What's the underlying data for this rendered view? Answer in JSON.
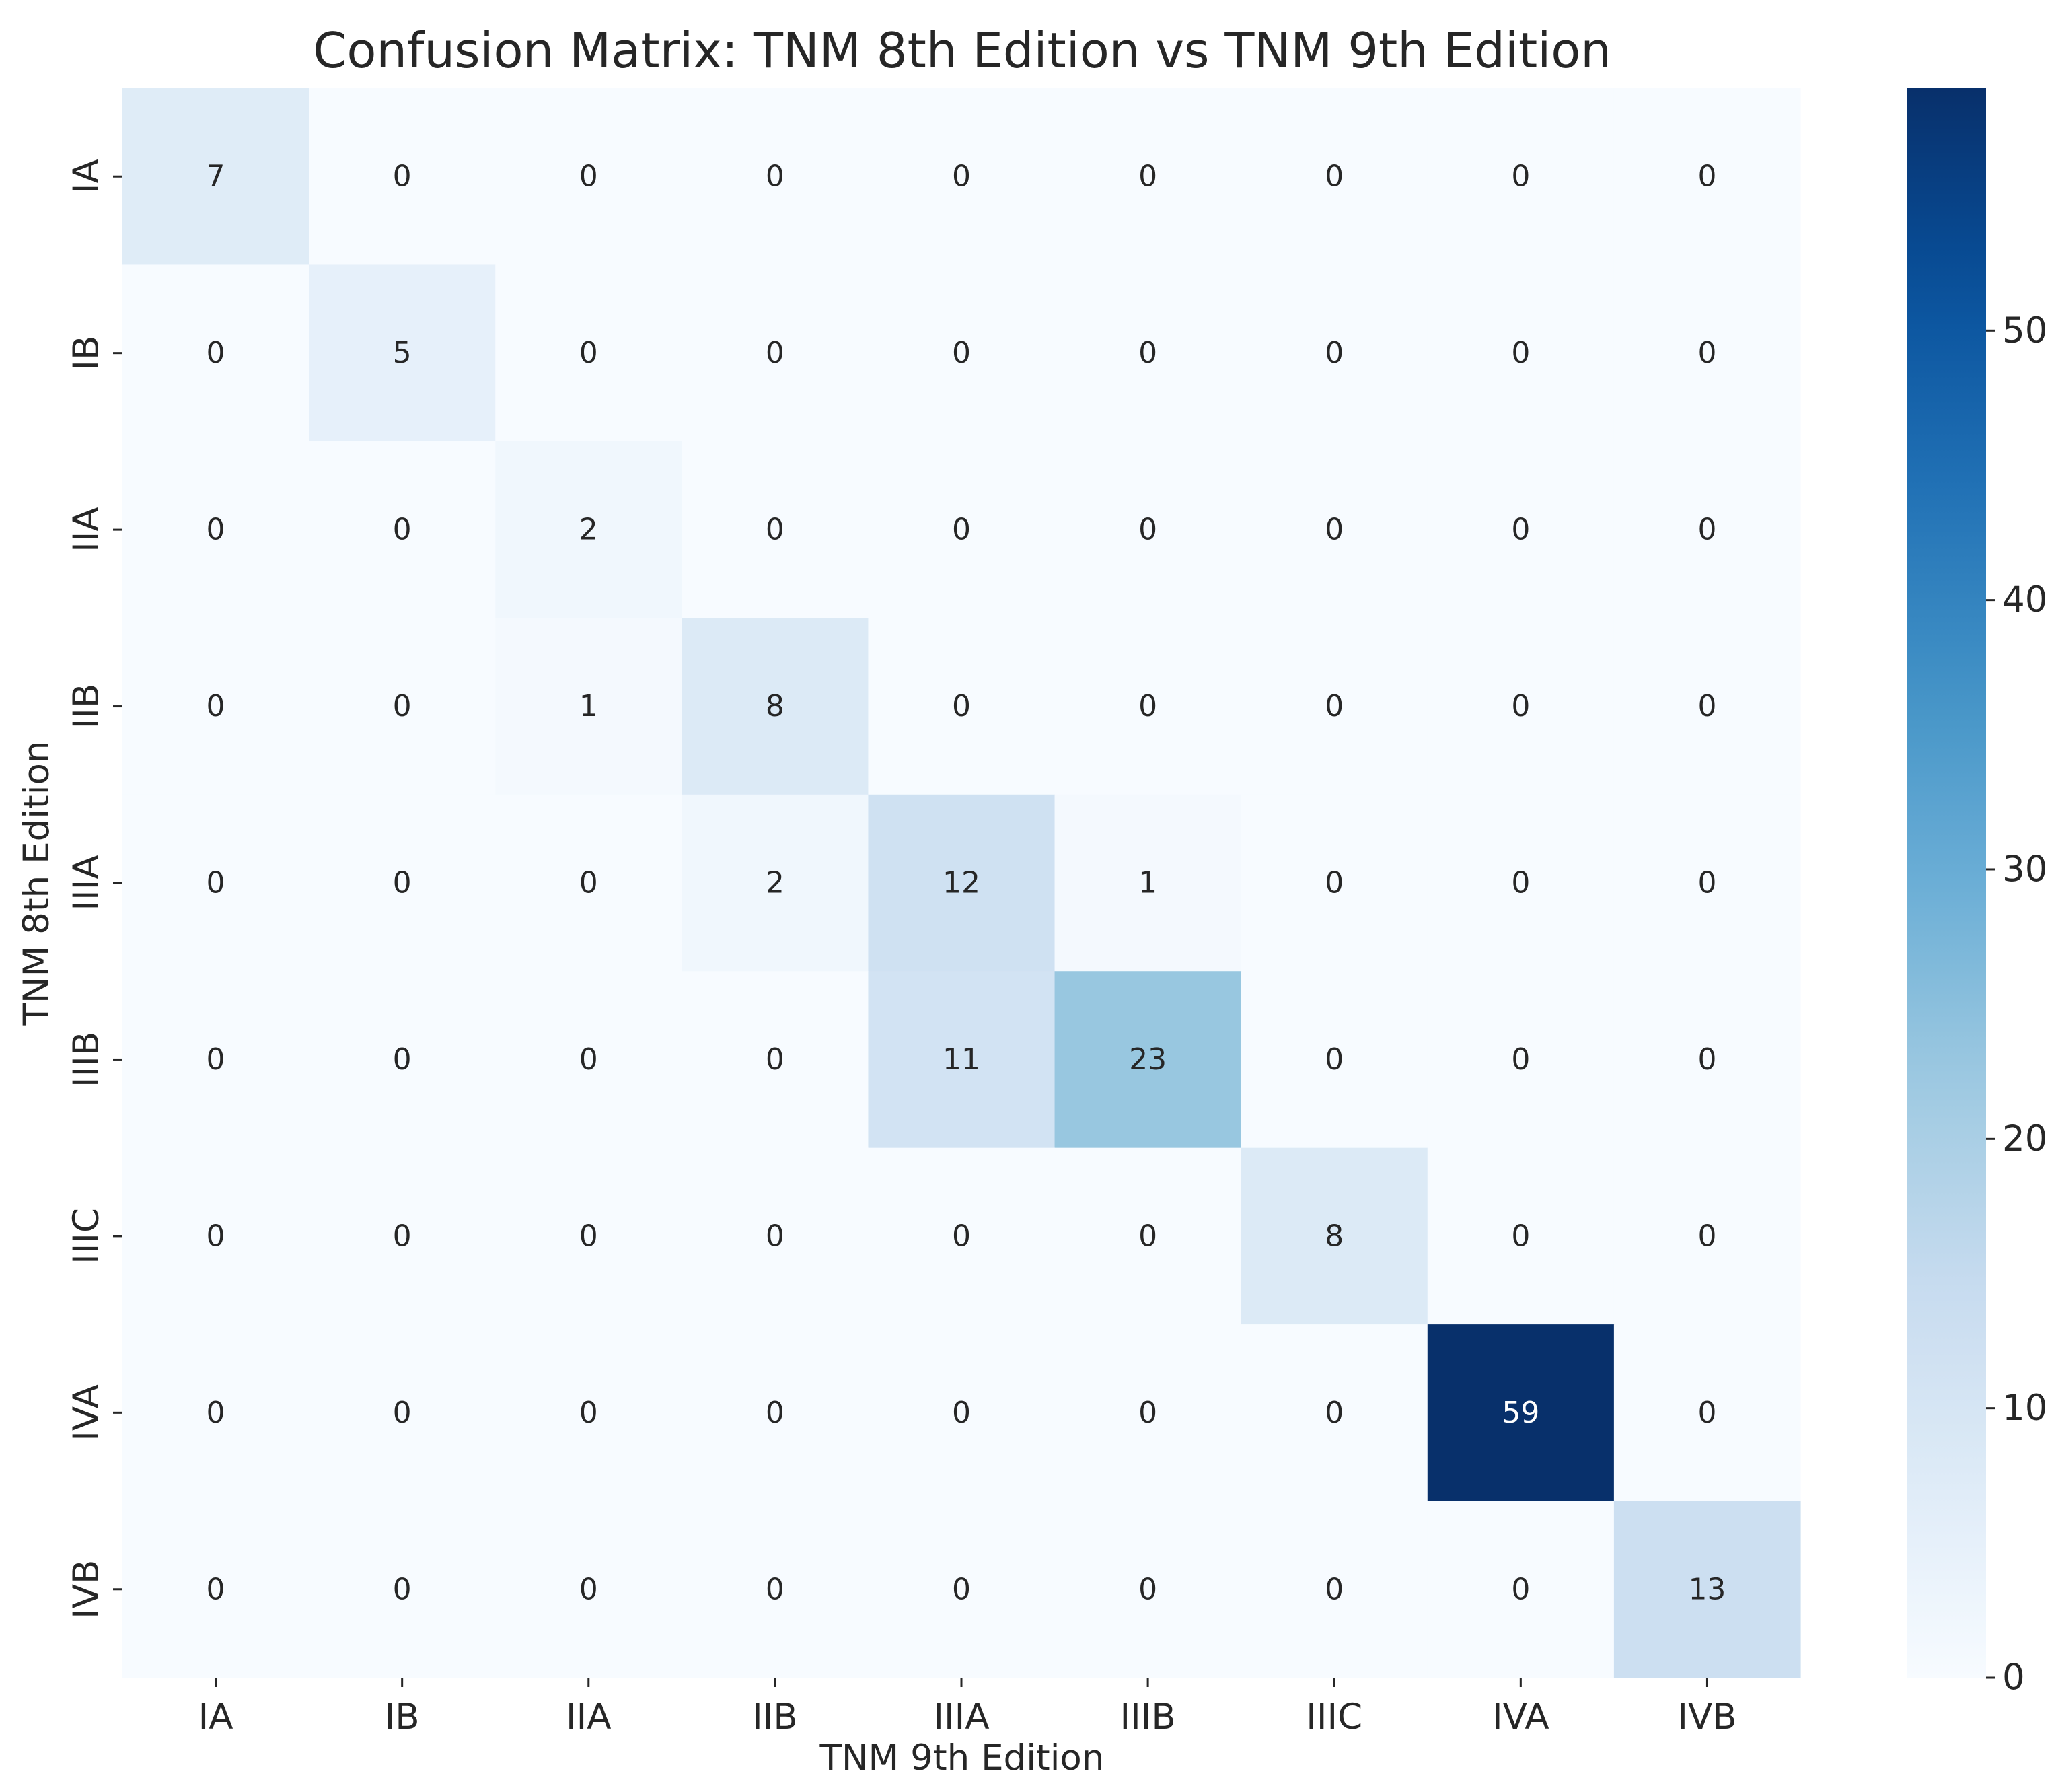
{
  "chart_data": {
    "type": "heatmap",
    "title": "Confusion Matrix: TNM 8th Edition vs TNM 9th Edition",
    "xlabel": "TNM 9th Edition",
    "ylabel": "TNM 8th Edition",
    "x_categories": [
      "IA",
      "IB",
      "IIA",
      "IIB",
      "IIIA",
      "IIIB",
      "IIIC",
      "IVA",
      "IVB"
    ],
    "y_categories": [
      "IA",
      "IB",
      "IIA",
      "IIB",
      "IIIA",
      "IIIB",
      "IIIC",
      "IVA",
      "IVB"
    ],
    "values": [
      [
        7,
        0,
        0,
        0,
        0,
        0,
        0,
        0,
        0
      ],
      [
        0,
        5,
        0,
        0,
        0,
        0,
        0,
        0,
        0
      ],
      [
        0,
        0,
        2,
        0,
        0,
        0,
        0,
        0,
        0
      ],
      [
        0,
        0,
        1,
        8,
        0,
        0,
        0,
        0,
        0
      ],
      [
        0,
        0,
        0,
        2,
        12,
        1,
        0,
        0,
        0
      ],
      [
        0,
        0,
        0,
        0,
        11,
        23,
        0,
        0,
        0
      ],
      [
        0,
        0,
        0,
        0,
        0,
        0,
        8,
        0,
        0
      ],
      [
        0,
        0,
        0,
        0,
        0,
        0,
        0,
        59,
        0
      ],
      [
        0,
        0,
        0,
        0,
        0,
        0,
        0,
        0,
        13
      ]
    ],
    "colormap": "Blues",
    "vmin": 0,
    "vmax": 59,
    "colorbar_ticks": [
      0,
      10,
      20,
      30,
      40,
      50
    ],
    "annotations": true
  }
}
